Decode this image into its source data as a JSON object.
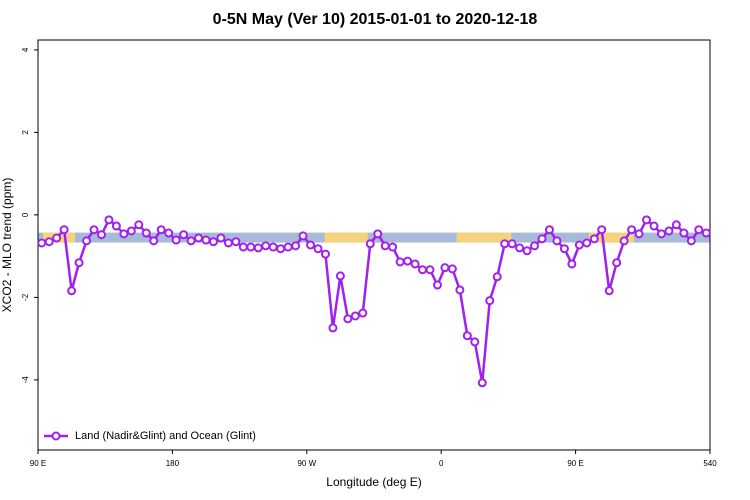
{
  "chart_data": {
    "type": "line",
    "title": "0-5N May (Ver 10)   2015-01-01 to 2020-12-18",
    "x_label": "Longitude (deg E)",
    "y_label": "XCO2 - MLO trend (ppm)",
    "xlim": [
      90,
      540
    ],
    "ylim": [
      -5.7,
      4.24
    ],
    "xticks": [
      {
        "value": 90,
        "label": "90 E"
      },
      180,
      {
        "value": 270,
        "label": "90 W"
      },
      {
        "value": 360,
        "label": "0"
      },
      {
        "value": 450,
        "label": "90 E"
      },
      540
    ],
    "yticks": [
      -4,
      -2,
      0,
      2,
      4
    ],
    "legend": "bottom-left",
    "surface_band": {
      "y": -0.55,
      "ocean_color": "#a7bbd8",
      "land_color": "#f5d37a",
      "land": [
        [
          93.3,
          114.8
        ],
        [
          282,
          310.8
        ],
        [
          370.3,
          407
        ],
        [
          459,
          489
        ]
      ]
    },
    "x": [
      92.5,
      97.5,
      102.5,
      107.5,
      112.5,
      117.5,
      122.5,
      127.5,
      132.5,
      137.5,
      142.5,
      147.5,
      152.5,
      157.5,
      162.5,
      167.5,
      172.5,
      177.5,
      182.5,
      187.5,
      192.5,
      197.5,
      202.5,
      207.5,
      212.5,
      217.5,
      222.5,
      227.5,
      232.5,
      237.5,
      242.5,
      247.5,
      252.5,
      257.5,
      262.5,
      267.5,
      272.5,
      277.5,
      282.5,
      287.5,
      292.5,
      297.5,
      302.5,
      307.5,
      312.5,
      317.5,
      322.5,
      327.5,
      332.5,
      337.5,
      342.5,
      347.5,
      352.5,
      357.5,
      362.5,
      367.5,
      372.5,
      377.5,
      382.5,
      387.5,
      392.5,
      397.5,
      402.5,
      407.5,
      412.5,
      417.5,
      422.5,
      427.5,
      432.5,
      437.5,
      442.5,
      447.5,
      452.5,
      457.5,
      462.5,
      467.5,
      472.5,
      477.5,
      482.5,
      487.5,
      492.5,
      497.5,
      502.5,
      507.5,
      512.5,
      517.5,
      522.5,
      527.5,
      532.5,
      537.5
    ],
    "series": [
      {
        "name": "Land (Nadir&Glint) and Ocean (Glint)",
        "color": "#a020f0",
        "values": [
          -0.68,
          -0.65,
          -0.56,
          -0.36,
          -1.84,
          -1.16,
          -0.63,
          -0.36,
          -0.48,
          -0.12,
          -0.27,
          -0.46,
          -0.39,
          -0.24,
          -0.44,
          -0.63,
          -0.36,
          -0.44,
          -0.61,
          -0.48,
          -0.63,
          -0.56,
          -0.61,
          -0.65,
          -0.56,
          -0.68,
          -0.65,
          -0.78,
          -0.78,
          -0.8,
          -0.75,
          -0.78,
          -0.82,
          -0.78,
          -0.75,
          -0.51,
          -0.73,
          -0.82,
          -0.95,
          -2.74,
          -1.48,
          -2.52,
          -2.45,
          -2.38,
          -0.7,
          -0.46,
          -0.75,
          -0.78,
          -1.14,
          -1.12,
          -1.19,
          -1.33,
          -1.33,
          -1.7,
          -1.28,
          -1.31,
          -1.82,
          -2.93,
          -3.08,
          -4.07,
          -2.08,
          -1.5,
          -0.7,
          -0.7,
          -0.8,
          -0.87,
          -0.75,
          -0.58,
          -0.36,
          -0.63,
          -0.82,
          -1.19,
          -0.73,
          -0.68,
          -0.58,
          -0.36,
          -1.84,
          -1.16,
          -0.63,
          -0.36,
          -0.46,
          -0.12,
          -0.27,
          -0.46,
          -0.39,
          -0.24,
          -0.44,
          -0.63,
          -0.36,
          -0.44
        ]
      }
    ]
  }
}
